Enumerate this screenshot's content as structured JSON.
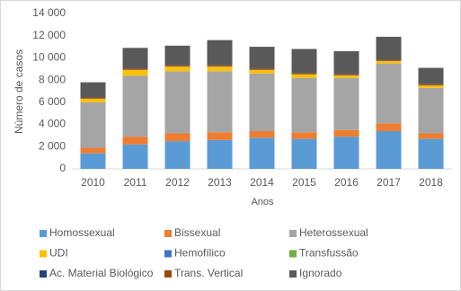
{
  "chart_data": {
    "type": "stacked-bar",
    "y_label": "Número de casos",
    "x_label": "Anos",
    "categories": [
      "2010",
      "2011",
      "2012",
      "2013",
      "2014",
      "2015",
      "2016",
      "2017",
      "2018"
    ],
    "series": [
      {
        "name": "Homossexual",
        "color": "#5b9bd5",
        "values": [
          1400,
          2200,
          2500,
          2600,
          2800,
          2700,
          2900,
          3400,
          2700
        ]
      },
      {
        "name": "Bissexual",
        "color": "#ed7d31",
        "values": [
          500,
          700,
          700,
          700,
          600,
          600,
          600,
          700,
          500
        ]
      },
      {
        "name": "Heterossexual",
        "color": "#a5a5a5",
        "values": [
          4100,
          5500,
          5600,
          5500,
          5200,
          4900,
          4700,
          5400,
          4100
        ]
      },
      {
        "name": "UDI",
        "color": "#ffc000",
        "values": [
          300,
          500,
          400,
          400,
          300,
          300,
          200,
          200,
          200
        ]
      },
      {
        "name": "Hemofílico",
        "color": "#4472c4",
        "values": [
          10,
          10,
          10,
          10,
          10,
          10,
          10,
          10,
          10
        ]
      },
      {
        "name": "Transfussão",
        "color": "#70ad47",
        "values": [
          10,
          10,
          10,
          10,
          10,
          10,
          10,
          10,
          10
        ]
      },
      {
        "name": "Ac. Material Biológico",
        "color": "#264478",
        "values": [
          10,
          10,
          10,
          10,
          10,
          10,
          10,
          10,
          10
        ]
      },
      {
        "name": "Trans. Vertical",
        "color": "#9e480e",
        "values": [
          100,
          100,
          100,
          100,
          100,
          100,
          100,
          100,
          100
        ]
      },
      {
        "name": "Ignorado",
        "color": "#595959",
        "values": [
          1370,
          1870,
          1770,
          2270,
          1970,
          2170,
          2070,
          2070,
          1470
        ]
      }
    ],
    "ylim": [
      0,
      14000
    ],
    "yticks": [
      0,
      {
        "value": 2000,
        "label": "2 000"
      },
      {
        "value": 4000,
        "label": "4 000"
      },
      {
        "value": 6000,
        "label": "6 000"
      },
      {
        "value": 8000,
        "label": "8 000"
      },
      {
        "value": 10000,
        "label": "10 000"
      },
      {
        "value": 12000,
        "label": "12 000"
      },
      {
        "value": 14000,
        "label": "14 000"
      }
    ]
  }
}
